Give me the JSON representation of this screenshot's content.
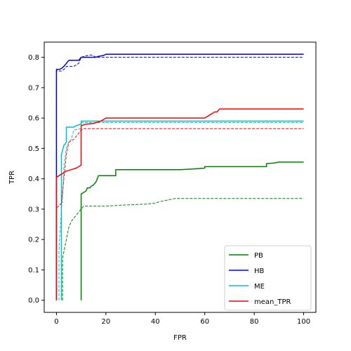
{
  "chart_data": {
    "type": "line",
    "title": "",
    "xlabel": "FPR",
    "ylabel": "TPR",
    "xlim": [
      -4.95,
      104.95
    ],
    "ylim": [
      -0.04,
      0.85
    ],
    "xticks": [
      0,
      20,
      40,
      60,
      80,
      100
    ],
    "yticks": [
      0.0,
      0.1,
      0.2,
      0.3,
      0.4,
      0.5,
      0.6,
      0.7,
      0.8
    ],
    "xtick_labels": [
      "0",
      "20",
      "40",
      "60",
      "80",
      "100"
    ],
    "ytick_labels": [
      "0.0",
      "0.1",
      "0.2",
      "0.3",
      "0.4",
      "0.5",
      "0.6",
      "0.7",
      "0.8"
    ],
    "grid": false,
    "legend": {
      "position": "bottom-right",
      "entries": [
        "PB",
        "HB",
        "ME",
        "mean_TPR"
      ]
    },
    "series": [
      {
        "name": "PB",
        "color": "#008000",
        "style": "solid",
        "points": [
          [
            10,
            0.0
          ],
          [
            10,
            0.35
          ],
          [
            11,
            0.355
          ],
          [
            12,
            0.36
          ],
          [
            12.5,
            0.37
          ],
          [
            13.5,
            0.37
          ],
          [
            14,
            0.375
          ],
          [
            15,
            0.38
          ],
          [
            16,
            0.39
          ],
          [
            16.5,
            0.4
          ],
          [
            17,
            0.41
          ],
          [
            20,
            0.41
          ],
          [
            24,
            0.41
          ],
          [
            24,
            0.43
          ],
          [
            30,
            0.43
          ],
          [
            40,
            0.43
          ],
          [
            50,
            0.43
          ],
          [
            55,
            0.432
          ],
          [
            60,
            0.435
          ],
          [
            60,
            0.44
          ],
          [
            70,
            0.44
          ],
          [
            80,
            0.44
          ],
          [
            85,
            0.44
          ],
          [
            85,
            0.45
          ],
          [
            88,
            0.452
          ],
          [
            90,
            0.455
          ],
          [
            100,
            0.455
          ]
        ]
      },
      {
        "name": "PB",
        "color": "#008000",
        "style": "dashed",
        "points": [
          [
            2.5,
            0.0
          ],
          [
            2.5,
            0.14
          ],
          [
            3,
            0.16
          ],
          [
            4,
            0.2
          ],
          [
            4.5,
            0.22
          ],
          [
            5,
            0.24
          ],
          [
            6,
            0.26
          ],
          [
            7,
            0.27
          ],
          [
            8,
            0.28
          ],
          [
            9,
            0.29
          ],
          [
            10,
            0.3
          ],
          [
            11,
            0.31
          ],
          [
            20,
            0.31
          ],
          [
            26,
            0.313
          ],
          [
            37,
            0.317
          ],
          [
            40,
            0.32
          ],
          [
            42,
            0.325
          ],
          [
            45,
            0.33
          ],
          [
            48,
            0.335
          ],
          [
            100,
            0.335
          ]
        ]
      },
      {
        "name": "HB",
        "color": "#0000cd",
        "style": "solid",
        "points": [
          [
            0,
            0.0
          ],
          [
            0,
            0.76
          ],
          [
            1,
            0.76
          ],
          [
            2,
            0.763
          ],
          [
            3,
            0.77
          ],
          [
            4,
            0.78
          ],
          [
            5,
            0.79
          ],
          [
            8,
            0.79
          ],
          [
            9,
            0.79
          ],
          [
            10,
            0.8
          ],
          [
            14,
            0.8
          ],
          [
            16,
            0.8
          ],
          [
            17,
            0.803
          ],
          [
            19,
            0.806
          ],
          [
            20,
            0.81
          ],
          [
            100,
            0.81
          ]
        ]
      },
      {
        "name": "HB",
        "color": "#0000cd",
        "style": "dashed",
        "points": [
          [
            0,
            0.0
          ],
          [
            0,
            0.755
          ],
          [
            2,
            0.755
          ],
          [
            3,
            0.76
          ],
          [
            4,
            0.77
          ],
          [
            7,
            0.77
          ],
          [
            8,
            0.775
          ],
          [
            9,
            0.78
          ],
          [
            10,
            0.8
          ],
          [
            12,
            0.805
          ],
          [
            14,
            0.808
          ],
          [
            15,
            0.805
          ],
          [
            16,
            0.8
          ],
          [
            100,
            0.8
          ]
        ]
      },
      {
        "name": "ME",
        "color": "#00bfbf",
        "style": "solid",
        "points": [
          [
            2,
            0.0
          ],
          [
            2,
            0.48
          ],
          [
            3,
            0.51
          ],
          [
            4,
            0.52
          ],
          [
            4,
            0.57
          ],
          [
            7,
            0.57
          ],
          [
            8,
            0.575
          ],
          [
            10,
            0.58
          ],
          [
            10,
            0.59
          ],
          [
            100,
            0.59
          ]
        ]
      },
      {
        "name": "ME",
        "color": "#00bfbf",
        "style": "dashed",
        "points": [
          [
            1,
            0.0
          ],
          [
            1,
            0.16
          ],
          [
            2,
            0.3
          ],
          [
            2.5,
            0.34
          ],
          [
            3,
            0.44
          ],
          [
            4,
            0.5
          ],
          [
            5,
            0.52
          ],
          [
            6,
            0.53
          ],
          [
            7,
            0.56
          ],
          [
            8,
            0.562
          ],
          [
            10,
            0.565
          ],
          [
            10,
            0.585
          ],
          [
            100,
            0.585
          ]
        ]
      },
      {
        "name": "mean_TPR",
        "color": "#ff0000",
        "style": "solid",
        "points": [
          [
            0,
            0.0
          ],
          [
            0,
            0.405
          ],
          [
            1,
            0.41
          ],
          [
            2,
            0.415
          ],
          [
            3,
            0.42
          ],
          [
            4,
            0.425
          ],
          [
            6,
            0.43
          ],
          [
            8,
            0.435
          ],
          [
            9,
            0.44
          ],
          [
            10,
            0.445
          ],
          [
            10,
            0.575
          ],
          [
            12,
            0.58
          ],
          [
            15,
            0.582
          ],
          [
            18,
            0.59
          ],
          [
            20,
            0.6
          ],
          [
            40,
            0.6
          ],
          [
            60,
            0.6
          ],
          [
            62,
            0.61
          ],
          [
            64,
            0.62
          ],
          [
            65,
            0.62
          ],
          [
            66,
            0.63
          ],
          [
            100,
            0.63
          ]
        ]
      },
      {
        "name": "mean_TPR",
        "color": "#ff0000",
        "style": "dashed",
        "points": [
          [
            0,
            0.0
          ],
          [
            0,
            0.305
          ],
          [
            1,
            0.31
          ],
          [
            2,
            0.32
          ],
          [
            3,
            0.4
          ],
          [
            4,
            0.48
          ],
          [
            5,
            0.52
          ],
          [
            6,
            0.525
          ],
          [
            7,
            0.53
          ],
          [
            8,
            0.54
          ],
          [
            9,
            0.55
          ],
          [
            10,
            0.56
          ],
          [
            11,
            0.565
          ],
          [
            100,
            0.565
          ]
        ]
      }
    ]
  }
}
